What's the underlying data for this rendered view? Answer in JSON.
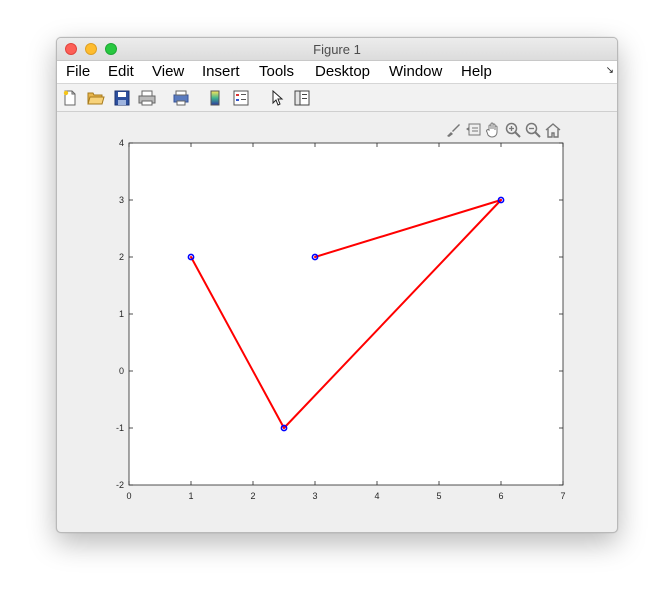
{
  "window": {
    "title": "Figure 1"
  },
  "menu": {
    "items": [
      "File",
      "Edit",
      "View",
      "Insert",
      "Tools",
      "Desktop",
      "Window",
      "Help"
    ]
  },
  "toolbar": {
    "buttons": [
      "new-figure-icon",
      "open-file-icon",
      "save-icon",
      "print-icon",
      "print-preview-icon",
      "colorbar-icon",
      "legend-icon",
      "edit-plot-arrow-icon",
      "property-inspector-icon"
    ]
  },
  "axes_toolbar": {
    "buttons": [
      "brush-icon",
      "data-tips-icon",
      "pan-hand-icon",
      "zoom-in-icon",
      "zoom-out-icon",
      "home-icon"
    ]
  },
  "colors": {
    "line": "#ff0000",
    "marker": "#0000ff",
    "axes_background": "#ffffff",
    "figure_background": "#efefef"
  },
  "chart_data": {
    "type": "line",
    "title": "",
    "xlabel": "",
    "ylabel": "",
    "xlim": [
      0,
      7
    ],
    "ylim": [
      -2,
      4
    ],
    "xticks": [
      "0",
      "1",
      "2",
      "3",
      "4",
      "5",
      "6",
      "7"
    ],
    "yticks": [
      "-2",
      "-1",
      "0",
      "1",
      "2",
      "3",
      "4"
    ],
    "grid": false,
    "series": [
      {
        "x": [
          1,
          2.5,
          6,
          3
        ],
        "y": [
          2,
          -1,
          3,
          2
        ],
        "line_color": "#ff0000",
        "marker": "o",
        "marker_color": "#0000ff"
      }
    ]
  }
}
